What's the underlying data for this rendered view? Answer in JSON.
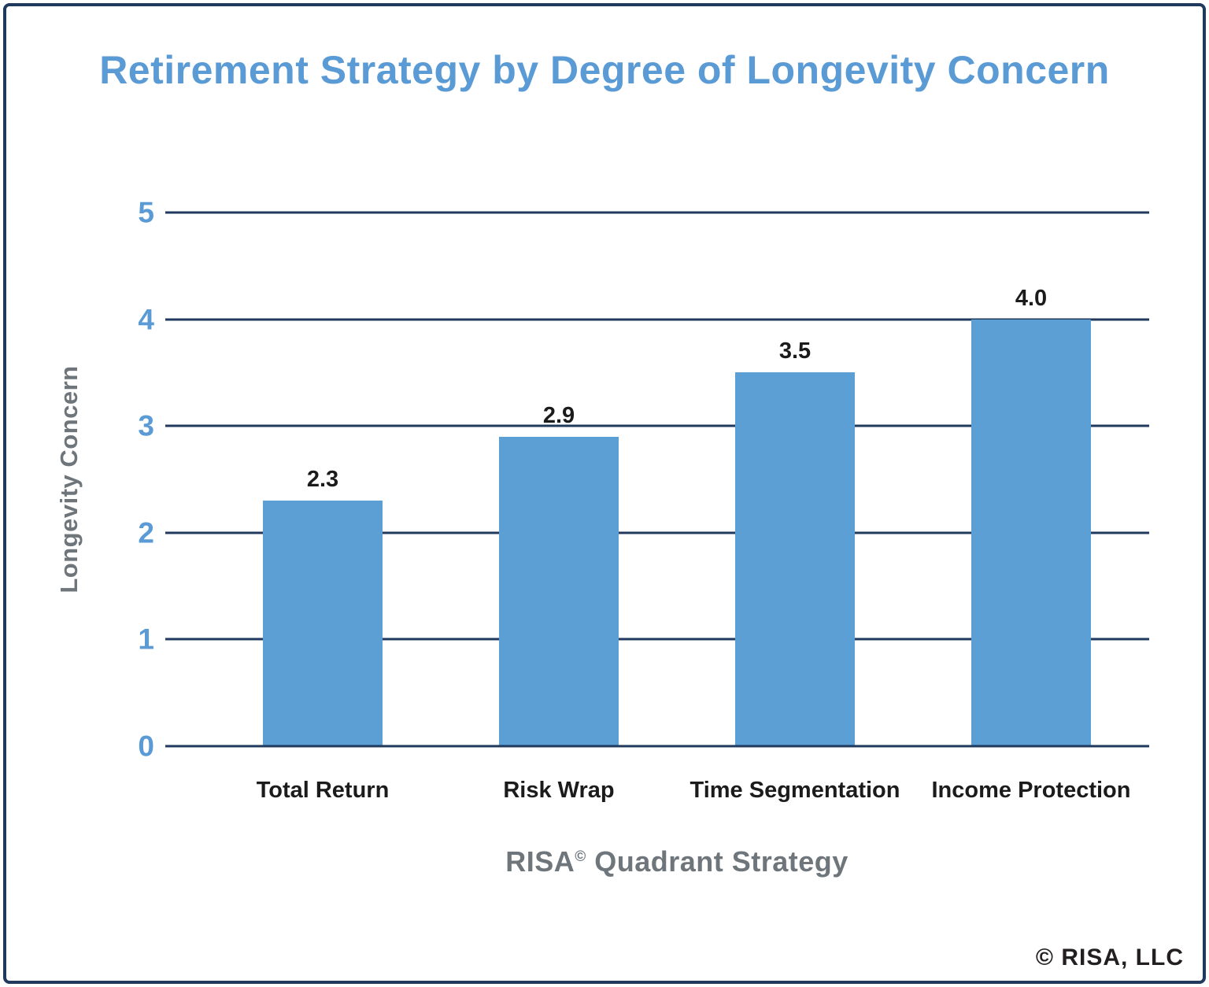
{
  "page": {
    "background": "#FFFFFF",
    "border_color": "#1F3A5C"
  },
  "header": {
    "title": "Retirement Strategy by Degree of Longevity Concern",
    "title_color": "#5B9BD5"
  },
  "chart_data": {
    "type": "bar",
    "title": "Retirement Strategy by Degree of Longevity Concern",
    "categories": [
      "Total Return",
      "Risk Wrap",
      "Time Segmentation",
      "Income Protection"
    ],
    "values": [
      2.3,
      2.9,
      3.5,
      4.0
    ],
    "value_labels": [
      "2.3",
      "2.9",
      "3.5",
      "4.0"
    ],
    "xlabel": "RISA© Quadrant Strategy",
    "xlabel_parts": {
      "brand": "RISA",
      "superscript": "©",
      "rest": " Quadrant Strategy"
    },
    "ylabel": "Longevity Concern",
    "ylim": [
      0,
      5
    ],
    "yticks": [
      0,
      1,
      2,
      3,
      4,
      5
    ],
    "grid": true,
    "legend": "none",
    "bar_color": "#5B9FD4",
    "grid_color": "#1F3A5C",
    "tick_label_color": "#5B9BD5",
    "axis_title_color": "#6E757B",
    "value_label_color": "#1B1B1B"
  },
  "footer": {
    "copyright": "© RISA, LLC"
  }
}
